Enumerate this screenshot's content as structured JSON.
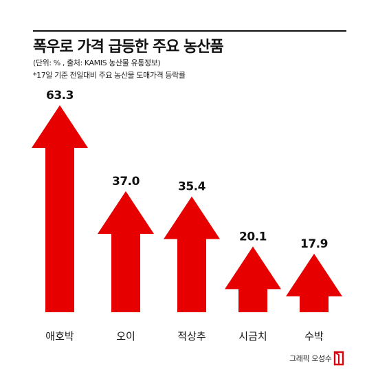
{
  "header": {
    "title": "폭우로 가격 급등한 주요 농산품",
    "unit_source": "(단위: % , 출처: KAMIS 농산물 유통정보)",
    "note": "*17일 기준 전일대비 주요 농산물 도매가격 등락률"
  },
  "chart_data": {
    "type": "bar",
    "categories": [
      "애호박",
      "오이",
      "적상추",
      "시금치",
      "수박"
    ],
    "values": [
      63.3,
      37.0,
      35.4,
      20.1,
      17.9
    ],
    "value_labels": [
      "63.3",
      "37.0",
      "35.4",
      "20.1",
      "17.9"
    ],
    "ylim": [
      0,
      63.3
    ],
    "bar_style": "up-arrow",
    "bar_color": "#e60000",
    "grid": false,
    "legend": "none"
  },
  "credit": "그래픽 오성수",
  "colors": {
    "bar": "#e60000",
    "text": "#111111",
    "logo": "#d7000f"
  }
}
